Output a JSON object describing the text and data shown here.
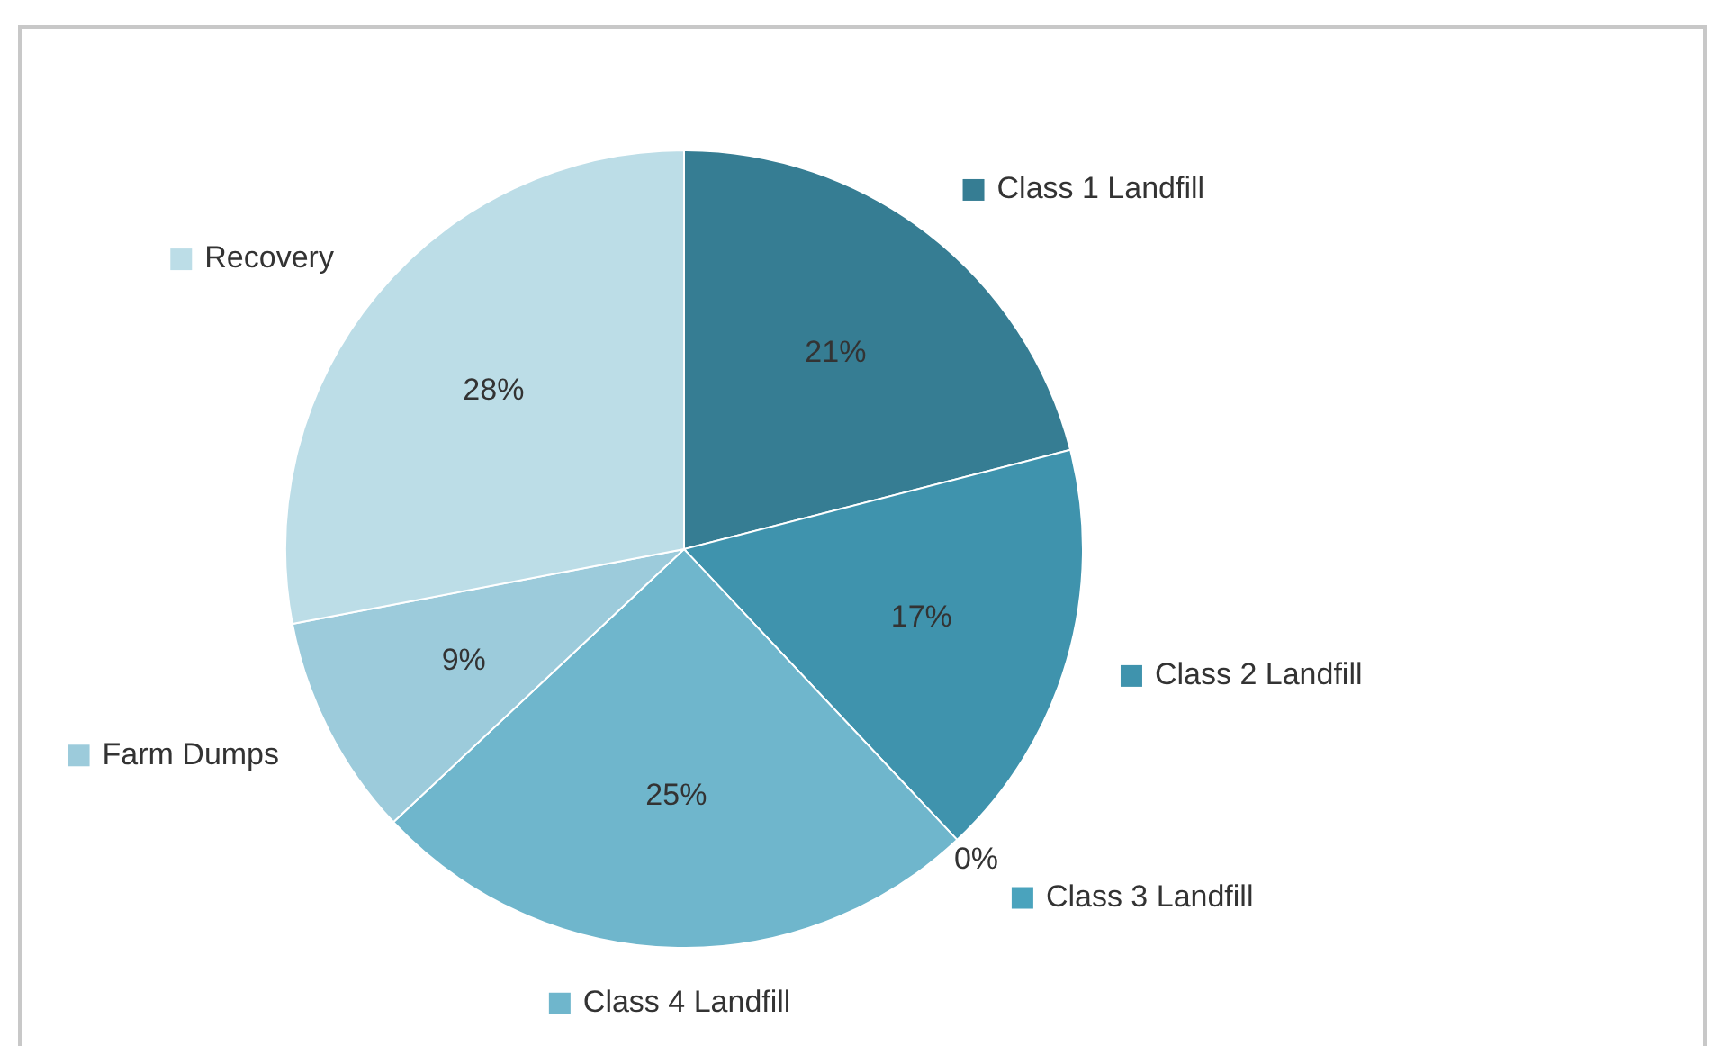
{
  "chart_data": {
    "type": "pie",
    "categories": [
      "Class 1 Landfill",
      "Class 2 Landfill",
      "Class 3 Landfill",
      "Class 4 Landfill",
      "Farm Dumps",
      "Recovery"
    ],
    "values": [
      21,
      17,
      0,
      25,
      9,
      28
    ],
    "value_labels": [
      "21%",
      "17%",
      "0%",
      "25%",
      "9%",
      "28%"
    ],
    "colors": [
      "#367d93",
      "#3f93ad",
      "#4aa3bd",
      "#6fb6cc",
      "#9ccbdb",
      "#bcdde7"
    ],
    "legend": "right"
  }
}
